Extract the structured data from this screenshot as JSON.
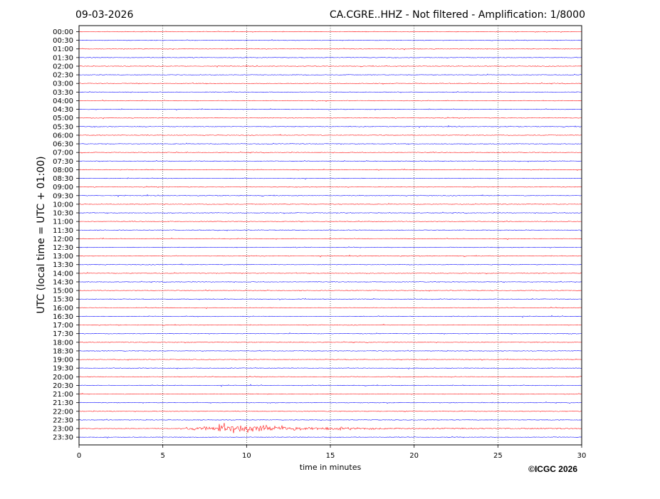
{
  "header": {
    "date": "09-03-2026",
    "title": "CA.CGRE..HHZ - Not filtered - Amplification: 1/8000"
  },
  "copyright": "©ICGC 2026",
  "chart_data": {
    "type": "line",
    "title": "CA.CGRE..HHZ - Not filtered - Amplification: 1/8000",
    "xlabel": "time in minutes",
    "ylabel": "UTC (local time = UTC + 01:00)",
    "xlim": [
      0,
      30
    ],
    "x_ticks": [
      0,
      5,
      10,
      15,
      20,
      25,
      30
    ],
    "grid": "vertical dotted lines every 5 minutes",
    "rows": [
      "00:00",
      "00:30",
      "01:00",
      "01:30",
      "02:00",
      "02:30",
      "03:00",
      "03:30",
      "04:00",
      "04:30",
      "05:00",
      "05:30",
      "06:00",
      "06:30",
      "07:00",
      "07:30",
      "08:00",
      "08:30",
      "09:00",
      "09:30",
      "10:00",
      "10:30",
      "11:00",
      "11:30",
      "12:00",
      "12:30",
      "13:00",
      "13:30",
      "14:00",
      "14:30",
      "15:00",
      "15:30",
      "16:00",
      "16:30",
      "17:00",
      "17:30",
      "18:00",
      "18:30",
      "19:00",
      "19:30",
      "20:00",
      "20:30",
      "21:00",
      "21:30",
      "22:00",
      "22:30",
      "23:00",
      "23:30"
    ],
    "row_colors": [
      "#ff0000",
      "#0000ff"
    ],
    "event": {
      "row": "23:00",
      "onset_minutes": 6.3,
      "peak_minutes": 8.3,
      "decay_end_minutes": 20.0
    }
  }
}
